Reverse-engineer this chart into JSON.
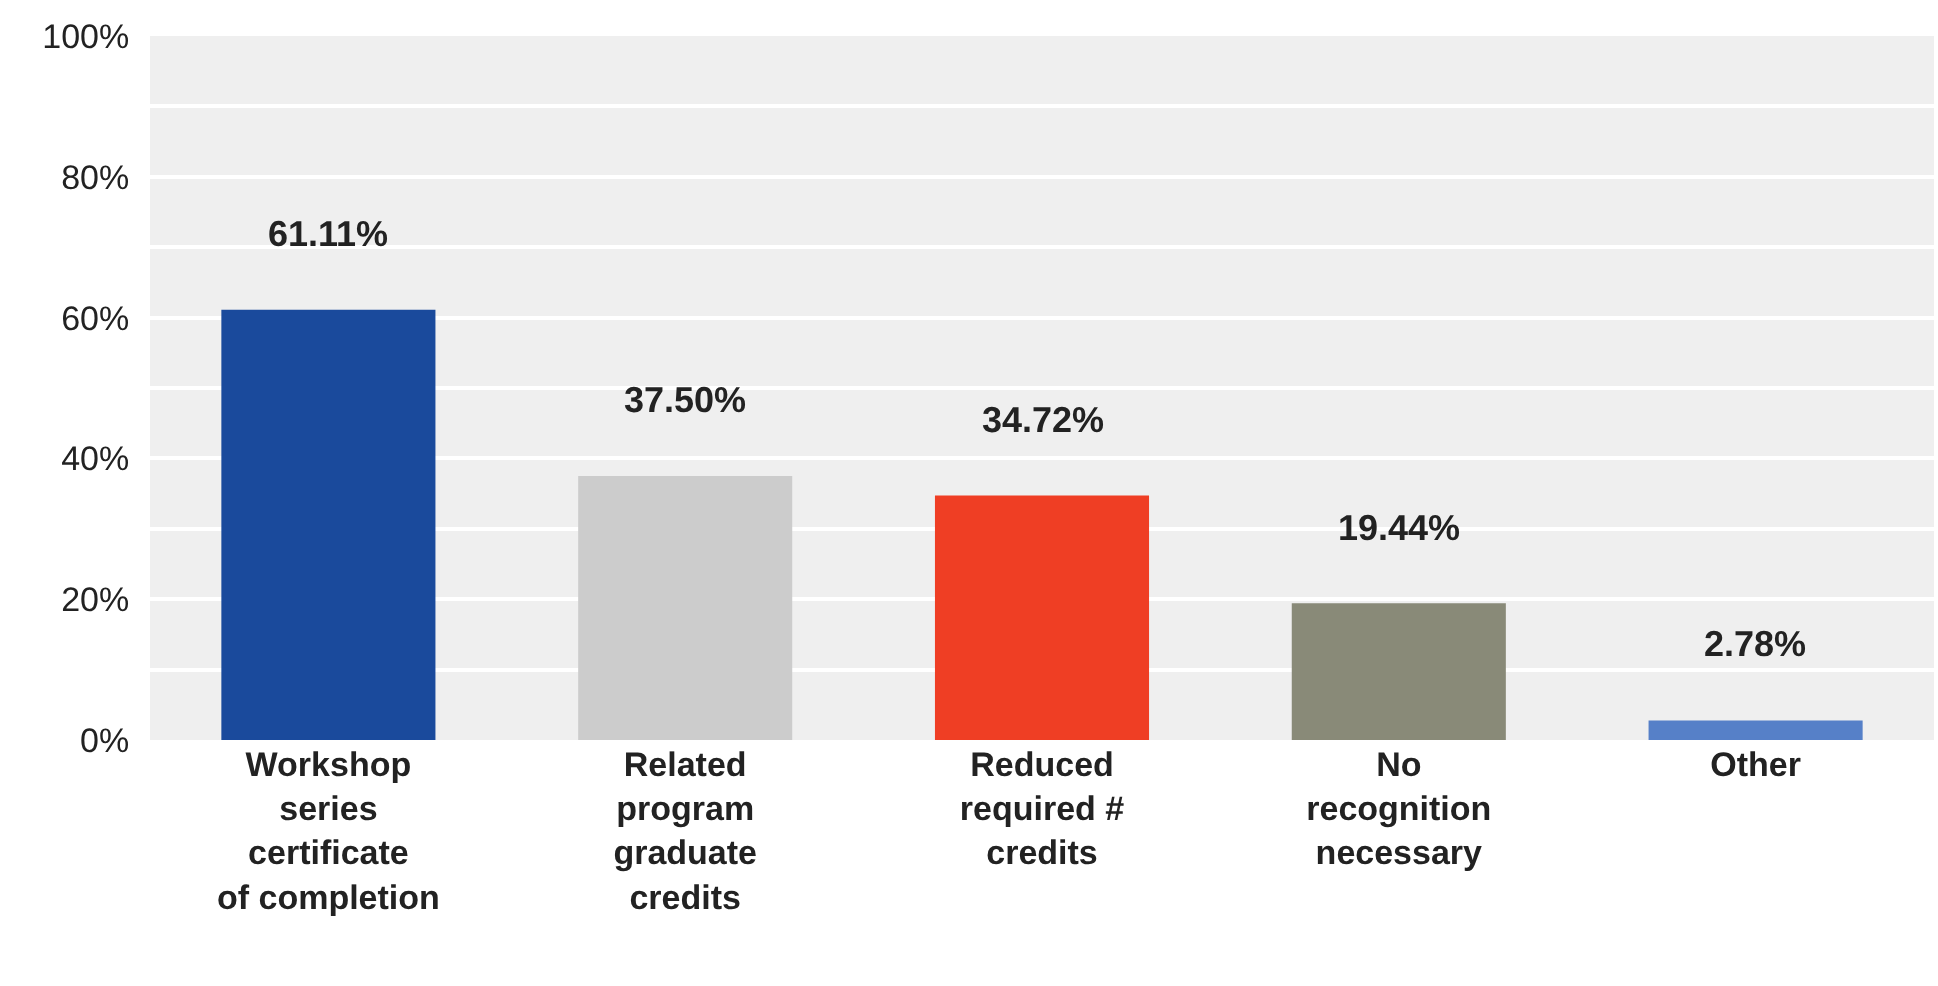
{
  "chart_data": {
    "type": "bar",
    "categories": [
      "Workshop\nseries\ncertificate\nof completion",
      "Related\nprogram\ngraduate\ncredits",
      "Reduced\nrequired #\ncredits",
      "No\nrecognition\nnecessary",
      "Other"
    ],
    "values": [
      61.11,
      37.5,
      34.72,
      19.44,
      2.78
    ],
    "colors": [
      "#1a4a9c",
      "#cccccc",
      "#ef3e24",
      "#898a78",
      "#5680c8"
    ],
    "value_labels": [
      "61.11%",
      "37.50%",
      "34.72%",
      "19.44%",
      "2.78%"
    ],
    "ylim": [
      0,
      100
    ],
    "yticks": [
      {
        "value": 0,
        "label": "0%"
      },
      {
        "value": 10,
        "label": null
      },
      {
        "value": 20,
        "label": "20%"
      },
      {
        "value": 30,
        "label": null
      },
      {
        "value": 40,
        "label": "40%"
      },
      {
        "value": 50,
        "label": null
      },
      {
        "value": 60,
        "label": "60%"
      },
      {
        "value": 70,
        "label": null
      },
      {
        "value": 80,
        "label": "80%"
      },
      {
        "value": 90,
        "label": null
      },
      {
        "value": 100,
        "label": "100%"
      }
    ],
    "grid": true,
    "legend": false
  }
}
